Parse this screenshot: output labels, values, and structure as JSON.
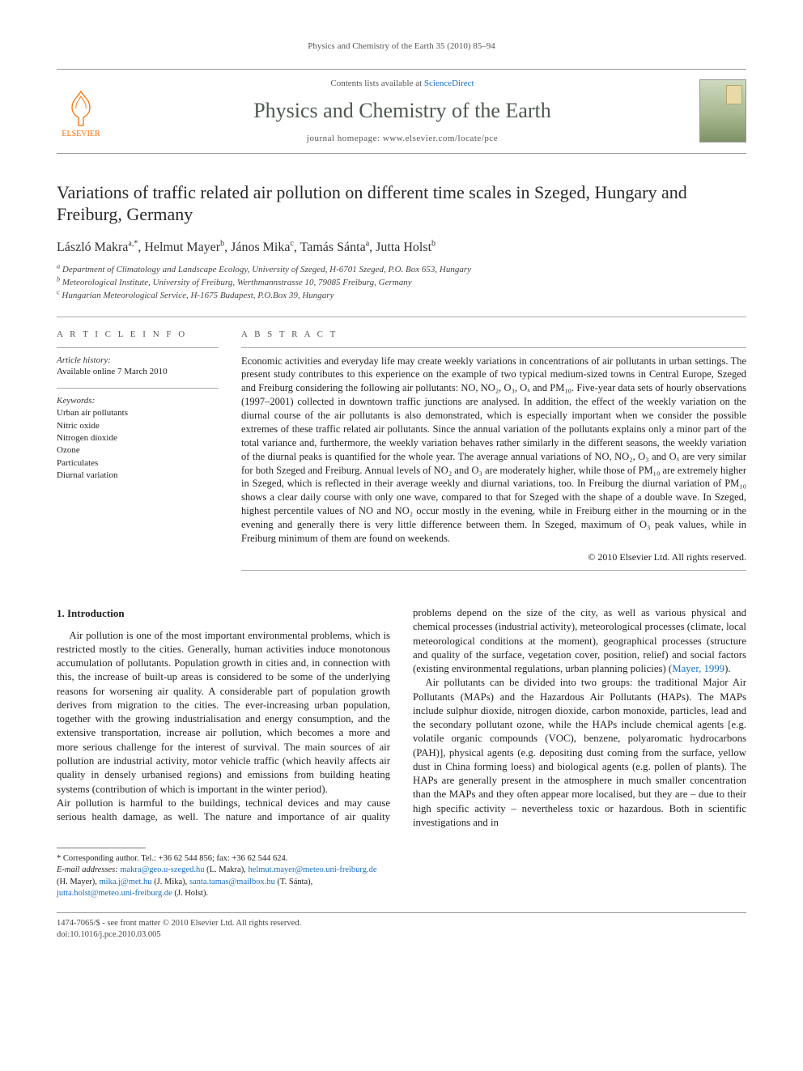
{
  "running_header": "Physics and Chemistry of the Earth 35 (2010) 85–94",
  "masthead": {
    "contents_prefix": "Contents lists available at ",
    "contents_link": "ScienceDirect",
    "journal_name": "Physics and Chemistry of the Earth",
    "homepage_prefix": "journal homepage: ",
    "homepage_url": "www.elsevier.com/locate/pce",
    "publisher_label": "ELSEVIER"
  },
  "title": "Variations of traffic related air pollution on different time scales in Szeged, Hungary and Freiburg, Germany",
  "authors_html": "László Makra<sup>a,*</sup>, Helmut Mayer<sup>b</sup>, János Mika<sup>c</sup>, Tamás Sánta<sup>a</sup>, Jutta Holst<sup>b</sup>",
  "affiliations": [
    "a Department of Climatology and Landscape Ecology, University of Szeged, H-6701 Szeged, P.O. Box 653, Hungary",
    "b Meteorological Institute, University of Freiburg, Werthmannstrasse 10, 79085 Freiburg, Germany",
    "c Hungarian Meteorological Service, H-1675 Budapest, P.O.Box 39, Hungary"
  ],
  "article_info": {
    "header": "A R T I C L E   I N F O",
    "history_label": "Article history:",
    "history_value": "Available online 7 March 2010",
    "keywords_label": "Keywords:",
    "keywords": [
      "Urban air pollutants",
      "Nitric oxide",
      "Nitrogen dioxide",
      "Ozone",
      "Particulates",
      "Diurnal variation"
    ]
  },
  "abstract": {
    "header": "A B S T R A C T",
    "text": "Economic activities and everyday life may create weekly variations in concentrations of air pollutants in urban settings. The present study contributes to this experience on the example of two typical medium-sized towns in Central Europe, Szeged and Freiburg considering the following air pollutants: NO, NO₂, O₃, Oₓ and PM₁₀. Five-year data sets of hourly observations (1997–2001) collected in downtown traffic junctions are analysed. In addition, the effect of the weekly variation on the diurnal course of the air pollutants is also demonstrated, which is especially important when we consider the possible extremes of these traffic related air pollutants. Since the annual variation of the pollutants explains only a minor part of the total variance and, furthermore, the weekly variation behaves rather similarly in the different seasons, the weekly variation of the diurnal peaks is quantified for the whole year. The average annual variations of NO, NO₂, O₃ and Oₓ are very similar for both Szeged and Freiburg. Annual levels of NO₂ and O₃ are moderately higher, while those of PM₁₀ are extremely higher in Szeged, which is reflected in their average weekly and diurnal variations, too. In Freiburg the diurnal variation of PM₁₀ shows a clear daily course with only one wave, compared to that for Szeged with the shape of a double wave. In Szeged, highest percentile values of NO and NO₂ occur mostly in the evening, while in Freiburg either in the mourning or in the evening and generally there is very little difference between them. In Szeged, maximum of O₃ peak values, while in Freiburg minimum of them are found on weekends.",
    "copyright": "© 2010 Elsevier Ltd. All rights reserved."
  },
  "section1_header": "1. Introduction",
  "body_paragraphs": [
    "Air pollution is one of the most important environmental problems, which is restricted mostly to the cities. Generally, human activities induce monotonous accumulation of pollutants. Population growth in cities and, in connection with this, the increase of built-up areas is considered to be some of the underlying reasons for worsening air quality. A considerable part of population growth derives from migration to the cities. The ever-increasing urban population, together with the growing industrialisation and energy consumption, and the extensive transportation, increase air pollution, which becomes a more and more serious challenge for the interest of survival. The main sources of air pollution are industrial activity, motor vehicle traffic (which heavily affects air quality in densely urbanised regions) and emissions from building heating systems (contribution of which is important in the winter period).",
    "Air pollution is harmful to the buildings, technical devices and may cause serious health damage, as well. The nature and importance of air quality problems depend on the size of the city, as well as various physical and chemical processes (industrial activity), meteorological processes (climate, local meteorological conditions at the moment), geographical processes (structure and quality of the surface, vegetation cover, position, relief) and social factors (existing environmental regulations, urban planning policies) (",
    "Air pollutants can be divided into two groups: the traditional Major Air Pollutants (MAPs) and the Hazardous Air Pollutants (HAPs). The MAPs include sulphur dioxide, nitrogen dioxide, carbon monoxide, particles, lead and the secondary pollutant ozone, while the HAPs include chemical agents [e.g. volatile organic compounds (VOC), benzene, polyaromatic hydrocarbons (PAH)], physical agents (e.g. depositing dust coming from the surface, yellow dust in China forming loess) and biological agents (e.g. pollen of plants). The HAPs are generally present in the atmosphere in much smaller concentration than the MAPs and they often appear more localised, but they are – due to their high specific activity – nevertheless toxic or hazardous. Both in scientific investigations and in"
  ],
  "ref_mayer": "Mayer, 1999",
  "footnotes": {
    "corr_line": "* Corresponding author. Tel.: +36 62 544 856; fax: +36 62 544 624.",
    "email_label": "E-mail addresses:",
    "emails": [
      {
        "addr": "makra@geo.u-szeged.hu",
        "who": "(L. Makra)"
      },
      {
        "addr": "helmut.mayer@meteo.uni-freiburg.de",
        "who": "(H. Mayer)"
      },
      {
        "addr": "mika.j@met.hu",
        "who": "(J. Mika)"
      },
      {
        "addr": "santa.tamas@mailbox.hu",
        "who": "(T. Sánta)"
      },
      {
        "addr": "jutta.holst@meteo.uni-freiburg.de",
        "who": "(J. Holst)"
      }
    ]
  },
  "bottom": {
    "left1": "1474-7065/$ - see front matter © 2010 Elsevier Ltd. All rights reserved.",
    "left2": "doi:10.1016/j.pce.2010.03.005"
  },
  "colors": {
    "link": "#1a6fc4",
    "elsevier_orange": "#ff6c00",
    "journal_title": "#4d5a50",
    "rule": "#aaaaaa"
  }
}
